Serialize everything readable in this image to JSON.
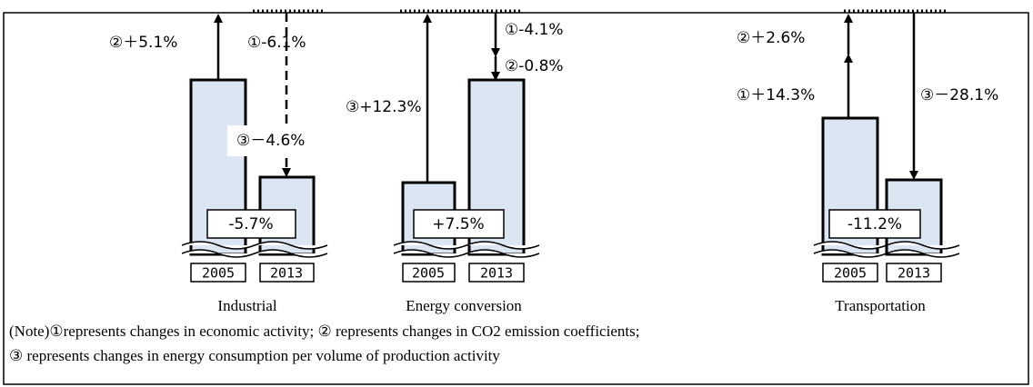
{
  "groups": [
    {
      "name": "Industrial",
      "years": [
        "2005",
        "2013"
      ],
      "total": "-5.7%",
      "factors": [
        "②＋5.1%",
        "①-6.1%",
        "③－4.6%"
      ]
    },
    {
      "name": "Energy conversion",
      "years": [
        "2005",
        "2013"
      ],
      "total": "+7.5%",
      "factors": [
        "①-4.1%",
        "②-0.8%",
        "③+12.3%"
      ]
    },
    {
      "name": "Transportation",
      "years": [
        "2005",
        "2013"
      ],
      "total": "-11.2%",
      "factors": [
        "②＋2.6%",
        "①＋14.3%",
        "③－28.1%"
      ]
    }
  ],
  "note": [
    "(Note)①represents changes in economic activity; ② represents changes in CO2 emission coefficients;",
    "③ represents changes in energy consumption per volume of production activity"
  ]
}
